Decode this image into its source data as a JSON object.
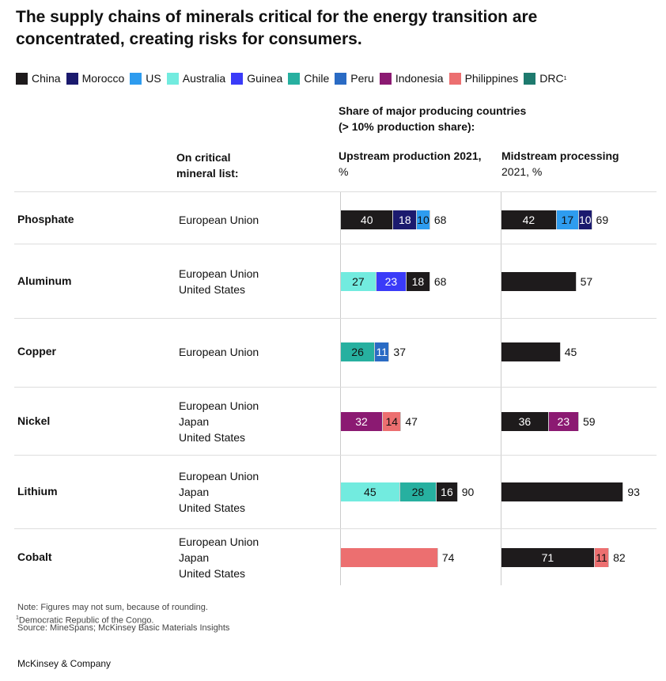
{
  "title": "The supply chains of minerals critical for the energy transition are concentrated, creating risks for consumers.",
  "chart_data": {
    "type": "bar",
    "title": "The supply chains of minerals critical for the energy transition are concentrated, creating risks for consumers.",
    "legend": [
      {
        "name": "China",
        "color": "#1e1b1c"
      },
      {
        "name": "Morocco",
        "color": "#1b1a6e"
      },
      {
        "name": "US",
        "color": "#2e9cef"
      },
      {
        "name": "Australia",
        "color": "#72ebdf"
      },
      {
        "name": "Guinea",
        "color": "#3a3bf8"
      },
      {
        "name": "Chile",
        "color": "#27b0a0"
      },
      {
        "name": "Peru",
        "color": "#2a6bc4"
      },
      {
        "name": "Indonesia",
        "color": "#8b1a72"
      },
      {
        "name": "Philippines",
        "color": "#ec6f70"
      },
      {
        "name": "DRC",
        "sup": "1",
        "color": "#1e7a6e"
      }
    ],
    "legend_placement": "top",
    "headers": {
      "share": [
        "Share of major producing countries",
        "(> 10% production share):"
      ],
      "list": [
        "On critical",
        "mineral list:"
      ],
      "upstream": [
        "Upstream production 2021,",
        "%"
      ],
      "midstream": [
        "Midstream processing",
        "2021, %"
      ]
    },
    "rows": [
      {
        "mineral": "Phosphate",
        "lists": [
          "European Union"
        ],
        "upstream": {
          "segments": [
            {
              "country": "China",
              "value": 40,
              "label": "40"
            },
            {
              "country": "Morocco",
              "value": 18,
              "label": "18"
            },
            {
              "country": "US",
              "value": 10,
              "label": "10"
            }
          ],
          "total": "68"
        },
        "midstream": {
          "segments": [
            {
              "country": "China",
              "value": 42,
              "label": "42"
            },
            {
              "country": "US",
              "value": 17,
              "label": "17"
            },
            {
              "country": "Morocco",
              "value": 10,
              "label": "10"
            }
          ],
          "total": "69"
        }
      },
      {
        "mineral": "Aluminum",
        "lists": [
          "European Union",
          "United States"
        ],
        "upstream": {
          "segments": [
            {
              "country": "Australia",
              "value": 27,
              "label": "27"
            },
            {
              "country": "Guinea",
              "value": 23,
              "label": "23"
            },
            {
              "country": "China",
              "value": 18,
              "label": "18"
            }
          ],
          "total": "68"
        },
        "midstream": {
          "segments": [
            {
              "country": "China",
              "value": 57
            }
          ],
          "total": "57"
        }
      },
      {
        "mineral": "Copper",
        "lists": [
          "European Union"
        ],
        "upstream": {
          "segments": [
            {
              "country": "Chile",
              "value": 26,
              "label": "26"
            },
            {
              "country": "Peru",
              "value": 11,
              "label": "11"
            }
          ],
          "total": "37"
        },
        "midstream": {
          "segments": [
            {
              "country": "China",
              "value": 45
            }
          ],
          "total": "45"
        }
      },
      {
        "mineral": "Nickel",
        "lists": [
          "European Union",
          "Japan",
          "United States"
        ],
        "upstream": {
          "segments": [
            {
              "country": "Indonesia",
              "value": 32,
              "label": "32"
            },
            {
              "country": "Philippines",
              "value": 14,
              "label": "14"
            }
          ],
          "total": "47"
        },
        "midstream": {
          "segments": [
            {
              "country": "China",
              "value": 36,
              "label": "36"
            },
            {
              "country": "Indonesia",
              "value": 23,
              "label": "23"
            }
          ],
          "total": "59"
        }
      },
      {
        "mineral": "Lithium",
        "lists": [
          "European Union",
          "Japan",
          "United States"
        ],
        "upstream": {
          "segments": [
            {
              "country": "Australia",
              "value": 45,
              "label": "45"
            },
            {
              "country": "Chile",
              "value": 28,
              "label": "28"
            },
            {
              "country": "China",
              "value": 16,
              "label": "16"
            }
          ],
          "total": "90"
        },
        "midstream": {
          "segments": [
            {
              "country": "China",
              "value": 93
            }
          ],
          "total": "93"
        }
      },
      {
        "mineral": "Cobalt",
        "lists": [
          "European Union",
          "Japan",
          "United States"
        ],
        "upstream": {
          "segments": [
            {
              "country": "Philippines",
              "value": 74
            }
          ],
          "total": "74"
        },
        "midstream": {
          "segments": [
            {
              "country": "China",
              "value": 71,
              "label": "71"
            },
            {
              "country": "Philippines",
              "value": 11,
              "label": "11"
            }
          ],
          "total": "82"
        }
      }
    ],
    "xlim": [
      0,
      100
    ]
  },
  "notes": [
    "Note: Figures may not sum, because of rounding.",
    "Democratic Republic of the Congo.",
    "Source: MineSpans; McKinsey Basic Materials Insights"
  ],
  "note_sup": "1",
  "brand": "McKinsey & Company"
}
